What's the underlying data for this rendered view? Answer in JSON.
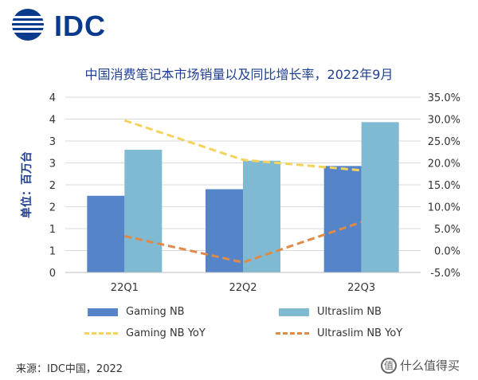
{
  "logo": {
    "text": "IDC",
    "color": "#0a3a8c"
  },
  "chart_data": {
    "type": "bar",
    "title": "中国消费笔记本市场销量以及同比增长率，2022年9月",
    "ylabel": "单位：百万台",
    "categories": [
      "22Q1",
      "22Q2",
      "22Q3"
    ],
    "y_ticks": [
      "0",
      "1",
      "1",
      "2",
      "2",
      "3",
      "3",
      "4",
      "4"
    ],
    "y_tick_values": [
      0,
      0.5,
      1,
      1.5,
      2,
      2.5,
      3,
      3.5,
      4
    ],
    "ylim": [
      0,
      4
    ],
    "y2_ticks": [
      "-5.0%",
      "0.0%",
      "5.0%",
      "10.0%",
      "15.0%",
      "20.0%",
      "25.0%",
      "30.0%",
      "35.0%"
    ],
    "y2lim": [
      -5,
      35
    ],
    "grid": true,
    "series": [
      {
        "name": "Gaming NB",
        "kind": "bar",
        "axis": "left",
        "color": "#5585c8",
        "values": [
          1.75,
          1.9,
          2.43
        ]
      },
      {
        "name": "Ultraslim NB",
        "kind": "bar",
        "axis": "left",
        "color": "#7fbad2",
        "values": [
          2.8,
          2.55,
          3.43
        ]
      },
      {
        "name": "Gaming NB YoY",
        "kind": "line",
        "axis": "right",
        "color": "#f3d35c",
        "values": [
          29.7,
          20.7,
          18.3
        ]
      },
      {
        "name": "Ultraslim NB YoY",
        "kind": "line",
        "axis": "right",
        "color": "#e08a4a",
        "values": [
          3.3,
          -2.7,
          6.5
        ]
      }
    ],
    "legend_position": "bottom"
  },
  "source": "来源：IDC中国，2022",
  "watermark": {
    "icon": "zhi-icon",
    "icon_glyph": "值",
    "text": "什么值得买"
  }
}
